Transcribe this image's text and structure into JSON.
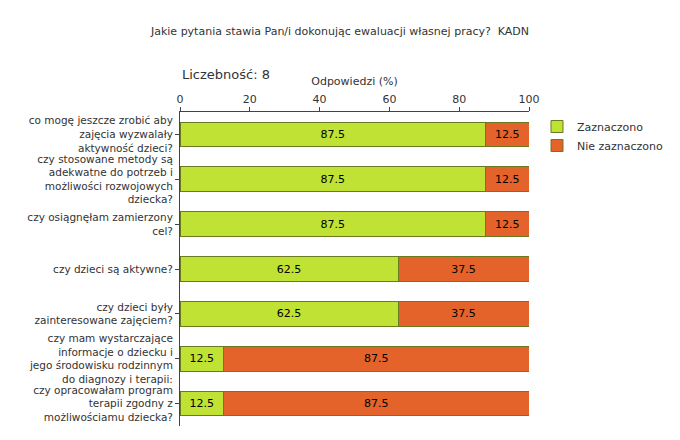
{
  "chart_data": {
    "type": "bar",
    "title": "Jakie pytania stawia Pan/i dokonując ewaluacji własnej pracy?  KADN",
    "subtitle": "Liczebność: 8",
    "x_label": "Odpowiedzi (%)",
    "orientation": "horizontal",
    "stacked": true,
    "data_labels": true,
    "grid": false,
    "legend": "right",
    "categories": [
      "co mogę jeszcze zrobić aby zajęcia wyzwalały aktywność dzieci?",
      "czy stosowane metody są adekwatne do potrzeb i możliwości rozwojowych dziecka?",
      "czy osiągnęłam zamierzony cel?",
      "czy dzieci są aktywne?",
      "czy dzieci były zainteresowane zajęciem?",
      "czy mam wystarczające informacje o dziecku i jego środowisku rodzinnym do diagnozy i terapii:",
      "czy opracowałam program terapii zgodny z możliwościamu dziecka?"
    ],
    "series": [
      {
        "name": "Zaznaczono",
        "color": "#c0e234",
        "values": [
          87.5,
          87.5,
          87.5,
          62.5,
          62.5,
          12.5,
          12.5
        ]
      },
      {
        "name": "Nie zaznaczono",
        "color": "#e3632b",
        "values": [
          12.5,
          12.5,
          12.5,
          37.5,
          37.5,
          87.5,
          87.5
        ]
      }
    ],
    "xlim": [
      0,
      100
    ],
    "xticks": [
      0,
      20,
      40,
      60,
      80,
      100
    ]
  }
}
